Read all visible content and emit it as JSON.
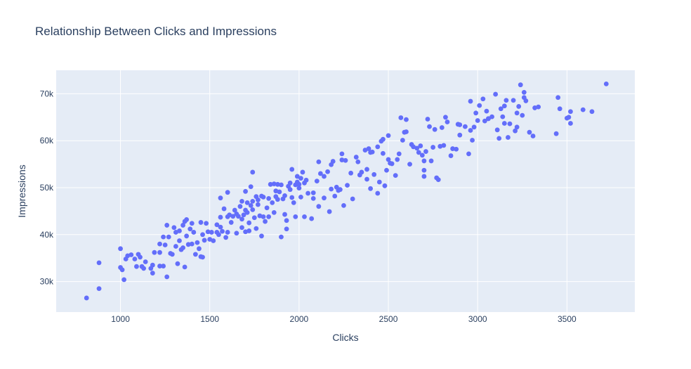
{
  "chart_data": {
    "type": "scatter",
    "title": "Relationship Between Clicks and Impressions",
    "xlabel": "Clicks",
    "ylabel": "Impressions",
    "xlim": [
      640,
      3880
    ],
    "ylim": [
      23500,
      75000
    ],
    "x_ticks": [
      1000,
      1500,
      2000,
      2500,
      3000,
      3500
    ],
    "x_tick_labels": [
      "1000",
      "1500",
      "2000",
      "2500",
      "3000",
      "3500"
    ],
    "y_ticks": [
      30000,
      40000,
      50000,
      60000,
      70000
    ],
    "y_tick_labels": [
      "30k",
      "40k",
      "50k",
      "60k",
      "70k"
    ],
    "grid": true,
    "colors": {
      "marker": "#636efa",
      "plot_bg": "#e5ecf6",
      "grid": "#ffffff",
      "text": "#2a3f5f"
    },
    "points": [
      [
        810,
        26500
      ],
      [
        880,
        28500
      ],
      [
        880,
        34000
      ],
      [
        1000,
        37000
      ],
      [
        1000,
        33000
      ],
      [
        1010,
        32500
      ],
      [
        1020,
        30400
      ],
      [
        1030,
        34800
      ],
      [
        1040,
        35500
      ],
      [
        1060,
        35700
      ],
      [
        1080,
        34800
      ],
      [
        1090,
        33200
      ],
      [
        1100,
        35800
      ],
      [
        1110,
        35200
      ],
      [
        1120,
        33200
      ],
      [
        1130,
        32800
      ],
      [
        1140,
        34200
      ],
      [
        1170,
        32800
      ],
      [
        1180,
        31800
      ],
      [
        1180,
        33500
      ],
      [
        1190,
        36200
      ],
      [
        1220,
        33300
      ],
      [
        1220,
        38000
      ],
      [
        1220,
        36200
      ],
      [
        1240,
        33300
      ],
      [
        1240,
        39500
      ],
      [
        1250,
        37800
      ],
      [
        1260,
        42000
      ],
      [
        1260,
        31000
      ],
      [
        1270,
        39500
      ],
      [
        1280,
        36000
      ],
      [
        1290,
        35800
      ],
      [
        1300,
        41500
      ],
      [
        1310,
        40500
      ],
      [
        1310,
        37500
      ],
      [
        1320,
        33800
      ],
      [
        1330,
        38700
      ],
      [
        1330,
        40800
      ],
      [
        1340,
        36800
      ],
      [
        1350,
        37200
      ],
      [
        1350,
        42000
      ],
      [
        1360,
        33100
      ],
      [
        1360,
        42800
      ],
      [
        1370,
        43200
      ],
      [
        1370,
        39700
      ],
      [
        1380,
        37900
      ],
      [
        1390,
        41200
      ],
      [
        1400,
        42400
      ],
      [
        1400,
        38000
      ],
      [
        1410,
        40500
      ],
      [
        1420,
        35800
      ],
      [
        1430,
        38300
      ],
      [
        1440,
        37000
      ],
      [
        1450,
        42600
      ],
      [
        1450,
        35300
      ],
      [
        1460,
        40000
      ],
      [
        1460,
        35200
      ],
      [
        1470,
        38800
      ],
      [
        1480,
        42400
      ],
      [
        1490,
        40600
      ],
      [
        1500,
        39000
      ],
      [
        1510,
        40500
      ],
      [
        1520,
        38700
      ],
      [
        1540,
        42100
      ],
      [
        1540,
        40500
      ],
      [
        1550,
        40000
      ],
      [
        1560,
        47800
      ],
      [
        1560,
        41600
      ],
      [
        1560,
        43700
      ],
      [
        1570,
        40700
      ],
      [
        1580,
        45500
      ],
      [
        1590,
        39400
      ],
      [
        1600,
        43800
      ],
      [
        1600,
        49000
      ],
      [
        1600,
        40500
      ],
      [
        1610,
        44200
      ],
      [
        1620,
        42600
      ],
      [
        1630,
        43900
      ],
      [
        1640,
        45200
      ],
      [
        1650,
        44400
      ],
      [
        1650,
        40300
      ],
      [
        1660,
        43900
      ],
      [
        1670,
        46000
      ],
      [
        1680,
        43300
      ],
      [
        1680,
        47100
      ],
      [
        1680,
        41500
      ],
      [
        1690,
        44200
      ],
      [
        1700,
        40600
      ],
      [
        1700,
        49200
      ],
      [
        1700,
        45200
      ],
      [
        1710,
        44700
      ],
      [
        1710,
        46800
      ],
      [
        1720,
        42500
      ],
      [
        1720,
        40800
      ],
      [
        1730,
        46200
      ],
      [
        1730,
        50200
      ],
      [
        1740,
        47100
      ],
      [
        1740,
        53300
      ],
      [
        1740,
        45300
      ],
      [
        1750,
        43600
      ],
      [
        1760,
        48100
      ],
      [
        1760,
        41300
      ],
      [
        1770,
        46400
      ],
      [
        1770,
        47400
      ],
      [
        1780,
        44000
      ],
      [
        1790,
        48200
      ],
      [
        1790,
        39700
      ],
      [
        1800,
        43800
      ],
      [
        1800,
        48000
      ],
      [
        1810,
        42800
      ],
      [
        1820,
        45700
      ],
      [
        1830,
        47700
      ],
      [
        1830,
        43800
      ],
      [
        1840,
        50700
      ],
      [
        1850,
        46800
      ],
      [
        1860,
        50800
      ],
      [
        1860,
        44700
      ],
      [
        1870,
        49300
      ],
      [
        1870,
        48100
      ],
      [
        1880,
        50700
      ],
      [
        1880,
        47500
      ],
      [
        1890,
        49100
      ],
      [
        1900,
        50600
      ],
      [
        1900,
        39500
      ],
      [
        1910,
        47600
      ],
      [
        1920,
        48300
      ],
      [
        1920,
        44300
      ],
      [
        1930,
        43000
      ],
      [
        1930,
        41200
      ],
      [
        1940,
        50300
      ],
      [
        1950,
        49600
      ],
      [
        1950,
        51000
      ],
      [
        1960,
        53900
      ],
      [
        1960,
        47900
      ],
      [
        1970,
        46800
      ],
      [
        1980,
        43800
      ],
      [
        1980,
        50600
      ],
      [
        1990,
        51200
      ],
      [
        1990,
        52400
      ],
      [
        2000,
        50700
      ],
      [
        2000,
        49900
      ],
      [
        2010,
        52000
      ],
      [
        2010,
        48000
      ],
      [
        2020,
        53300
      ],
      [
        2030,
        43800
      ],
      [
        2030,
        51000
      ],
      [
        2040,
        51600
      ],
      [
        2050,
        48800
      ],
      [
        2070,
        43400
      ],
      [
        2080,
        48900
      ],
      [
        2080,
        47700
      ],
      [
        2100,
        51400
      ],
      [
        2110,
        55500
      ],
      [
        2110,
        46000
      ],
      [
        2120,
        53000
      ],
      [
        2140,
        52400
      ],
      [
        2140,
        47800
      ],
      [
        2160,
        53400
      ],
      [
        2170,
        44900
      ],
      [
        2180,
        54900
      ],
      [
        2180,
        49700
      ],
      [
        2190,
        55600
      ],
      [
        2200,
        48200
      ],
      [
        2210,
        50100
      ],
      [
        2220,
        49400
      ],
      [
        2230,
        49600
      ],
      [
        2240,
        55900
      ],
      [
        2240,
        57200
      ],
      [
        2250,
        46200
      ],
      [
        2260,
        55800
      ],
      [
        2270,
        50500
      ],
      [
        2290,
        53100
      ],
      [
        2300,
        47600
      ],
      [
        2320,
        56500
      ],
      [
        2330,
        55500
      ],
      [
        2340,
        52700
      ],
      [
        2350,
        53300
      ],
      [
        2370,
        58000
      ],
      [
        2380,
        51800
      ],
      [
        2380,
        53900
      ],
      [
        2390,
        58300
      ],
      [
        2400,
        57500
      ],
      [
        2400,
        49800
      ],
      [
        2410,
        57600
      ],
      [
        2420,
        52800
      ],
      [
        2440,
        58700
      ],
      [
        2440,
        48800
      ],
      [
        2450,
        51200
      ],
      [
        2460,
        59900
      ],
      [
        2470,
        60300
      ],
      [
        2470,
        57300
      ],
      [
        2480,
        50400
      ],
      [
        2490,
        53700
      ],
      [
        2500,
        56000
      ],
      [
        2500,
        61100
      ],
      [
        2510,
        55200
      ],
      [
        2520,
        55100
      ],
      [
        2540,
        52600
      ],
      [
        2550,
        56000
      ],
      [
        2560,
        57200
      ],
      [
        2570,
        64900
      ],
      [
        2580,
        60100
      ],
      [
        2590,
        61800
      ],
      [
        2600,
        64500
      ],
      [
        2600,
        61900
      ],
      [
        2620,
        55000
      ],
      [
        2630,
        59200
      ],
      [
        2640,
        58700
      ],
      [
        2660,
        58400
      ],
      [
        2670,
        57500
      ],
      [
        2680,
        58900
      ],
      [
        2690,
        56900
      ],
      [
        2700,
        55700
      ],
      [
        2700,
        53700
      ],
      [
        2700,
        52400
      ],
      [
        2710,
        57700
      ],
      [
        2720,
        64600
      ],
      [
        2730,
        63000
      ],
      [
        2740,
        55700
      ],
      [
        2750,
        58600
      ],
      [
        2760,
        62400
      ],
      [
        2770,
        52100
      ],
      [
        2780,
        51700
      ],
      [
        2790,
        58800
      ],
      [
        2800,
        62800
      ],
      [
        2810,
        59000
      ],
      [
        2820,
        65000
      ],
      [
        2830,
        64000
      ],
      [
        2850,
        56800
      ],
      [
        2860,
        58300
      ],
      [
        2880,
        58200
      ],
      [
        2890,
        63500
      ],
      [
        2900,
        61200
      ],
      [
        2900,
        63400
      ],
      [
        2930,
        63000
      ],
      [
        2950,
        57200
      ],
      [
        2960,
        62200
      ],
      [
        2960,
        68400
      ],
      [
        2970,
        60100
      ],
      [
        2980,
        62900
      ],
      [
        2990,
        65900
      ],
      [
        3000,
        64300
      ],
      [
        3010,
        67500
      ],
      [
        3030,
        68900
      ],
      [
        3040,
        64200
      ],
      [
        3050,
        66300
      ],
      [
        3060,
        64700
      ],
      [
        3060,
        64700
      ],
      [
        3080,
        65100
      ],
      [
        3100,
        69900
      ],
      [
        3110,
        62300
      ],
      [
        3120,
        60500
      ],
      [
        3130,
        66800
      ],
      [
        3140,
        65100
      ],
      [
        3150,
        63700
      ],
      [
        3150,
        67400
      ],
      [
        3160,
        68600
      ],
      [
        3170,
        60700
      ],
      [
        3180,
        63600
      ],
      [
        3200,
        68600
      ],
      [
        3210,
        62100
      ],
      [
        3220,
        65900
      ],
      [
        3220,
        62900
      ],
      [
        3230,
        67300
      ],
      [
        3240,
        71900
      ],
      [
        3250,
        65400
      ],
      [
        3260,
        70300
      ],
      [
        3260,
        69200
      ],
      [
        3270,
        68500
      ],
      [
        3290,
        61800
      ],
      [
        3310,
        61000
      ],
      [
        3320,
        67000
      ],
      [
        3340,
        67200
      ],
      [
        3440,
        61500
      ],
      [
        3450,
        69200
      ],
      [
        3460,
        66800
      ],
      [
        3500,
        64800
      ],
      [
        3510,
        65000
      ],
      [
        3520,
        66200
      ],
      [
        3520,
        63700
      ],
      [
        3590,
        66600
      ],
      [
        3640,
        66200
      ],
      [
        3720,
        72100
      ]
    ]
  }
}
